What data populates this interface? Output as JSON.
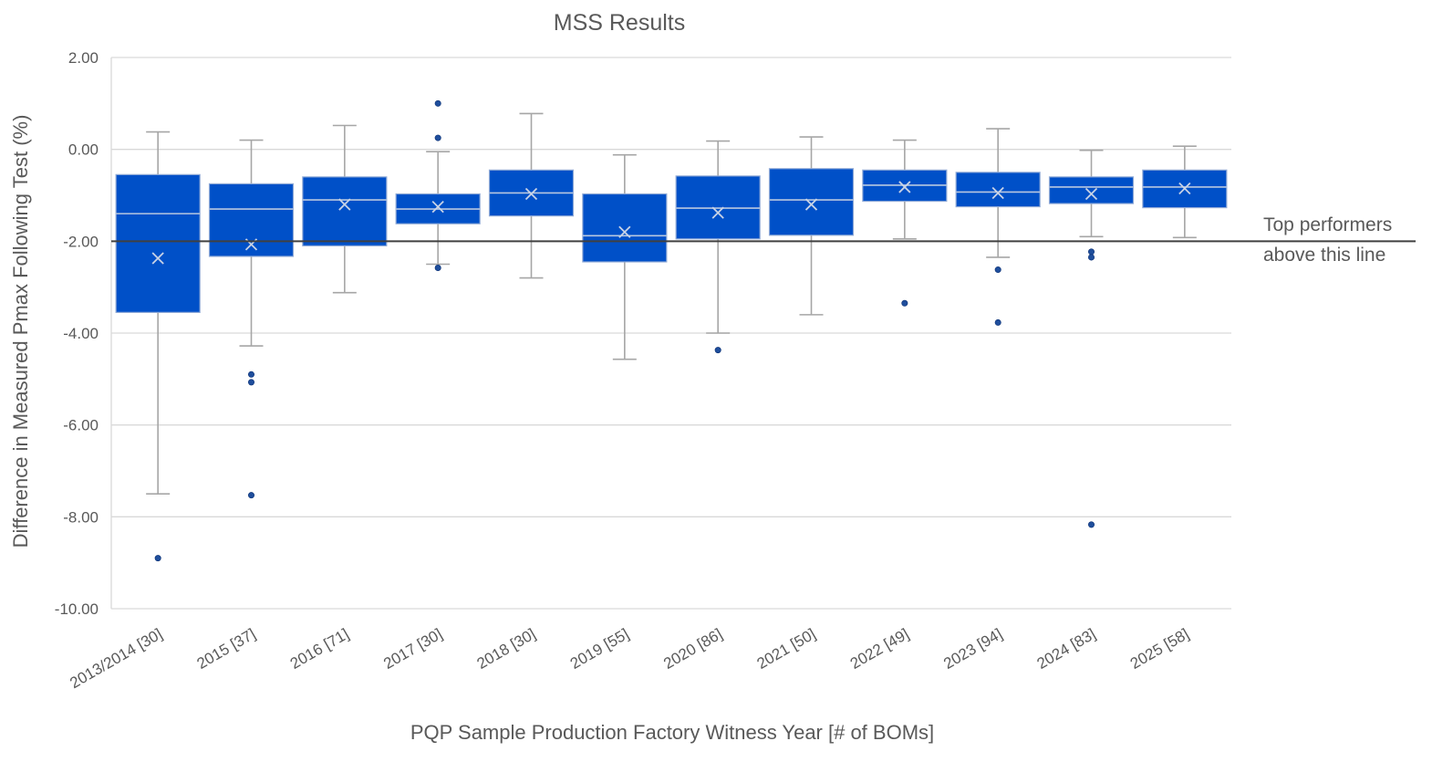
{
  "chart_data": {
    "type": "box",
    "title": "MSS Results",
    "xlabel": "PQP Sample Production Factory Witness Year [# of BOMs]",
    "ylabel": "Difference in Measured Pmax Following Test (%)",
    "ylim": [
      -10,
      2
    ],
    "yticks": [
      "2.00",
      "0.00",
      "-2.00",
      "-4.00",
      "-6.00",
      "-8.00",
      "-10.00"
    ],
    "grid": "horizontal",
    "box_color": "#0050c8",
    "whisker_color": "#a6a6a6",
    "outlier_color": "#1f4e9c",
    "reference_line": {
      "y": -2.0,
      "label_lines": [
        "Top performers",
        "above this line"
      ],
      "color": "#404040"
    },
    "categories": [
      "2013/2014 [30]",
      "2015 [37]",
      "2016 [71]",
      "2017 [30]",
      "2018 [30]",
      "2019 [55]",
      "2020 [86]",
      "2021 [50]",
      "2022 [49]",
      "2023 [94]",
      "2024 [83]",
      "2025 [58]"
    ],
    "boxes": [
      {
        "min": -7.5,
        "q1": -3.55,
        "median": -1.4,
        "q3": -0.55,
        "max": 0.38,
        "mean": -2.37,
        "outliers": [
          -8.9
        ]
      },
      {
        "min": -4.28,
        "q1": -2.33,
        "median": -1.3,
        "q3": -0.75,
        "max": 0.2,
        "mean": -2.07,
        "outliers": [
          -4.9,
          -5.07,
          -7.53
        ]
      },
      {
        "min": -3.12,
        "q1": -2.1,
        "median": -1.1,
        "q3": -0.6,
        "max": 0.52,
        "mean": -1.2,
        "outliers": []
      },
      {
        "min": -2.5,
        "q1": -1.62,
        "median": -1.3,
        "q3": -0.97,
        "max": -0.05,
        "mean": -1.25,
        "outliers": [
          1.0,
          0.25,
          -2.58
        ]
      },
      {
        "min": -2.8,
        "q1": -1.45,
        "median": -0.95,
        "q3": -0.45,
        "max": 0.78,
        "mean": -0.97,
        "outliers": []
      },
      {
        "min": -4.57,
        "q1": -2.45,
        "median": -1.88,
        "q3": -0.97,
        "max": -0.12,
        "mean": -1.8,
        "outliers": []
      },
      {
        "min": -4.0,
        "q1": -1.95,
        "median": -1.28,
        "q3": -0.58,
        "max": 0.18,
        "mean": -1.38,
        "outliers": [
          -4.37
        ]
      },
      {
        "min": -3.6,
        "q1": -1.87,
        "median": -1.1,
        "q3": -0.42,
        "max": 0.27,
        "mean": -1.2,
        "outliers": []
      },
      {
        "min": -1.95,
        "q1": -1.13,
        "median": -0.78,
        "q3": -0.45,
        "max": 0.2,
        "mean": -0.82,
        "outliers": [
          -3.35
        ]
      },
      {
        "min": -2.35,
        "q1": -1.25,
        "median": -0.93,
        "q3": -0.5,
        "max": 0.45,
        "mean": -0.95,
        "outliers": [
          -2.62,
          -3.77
        ]
      },
      {
        "min": -1.9,
        "q1": -1.18,
        "median": -0.82,
        "q3": -0.6,
        "max": -0.02,
        "mean": -0.97,
        "outliers": [
          -2.23,
          -2.35,
          -8.17
        ]
      },
      {
        "min": -1.92,
        "q1": -1.27,
        "median": -0.82,
        "q3": -0.45,
        "max": 0.07,
        "mean": -0.85,
        "outliers": []
      }
    ]
  }
}
